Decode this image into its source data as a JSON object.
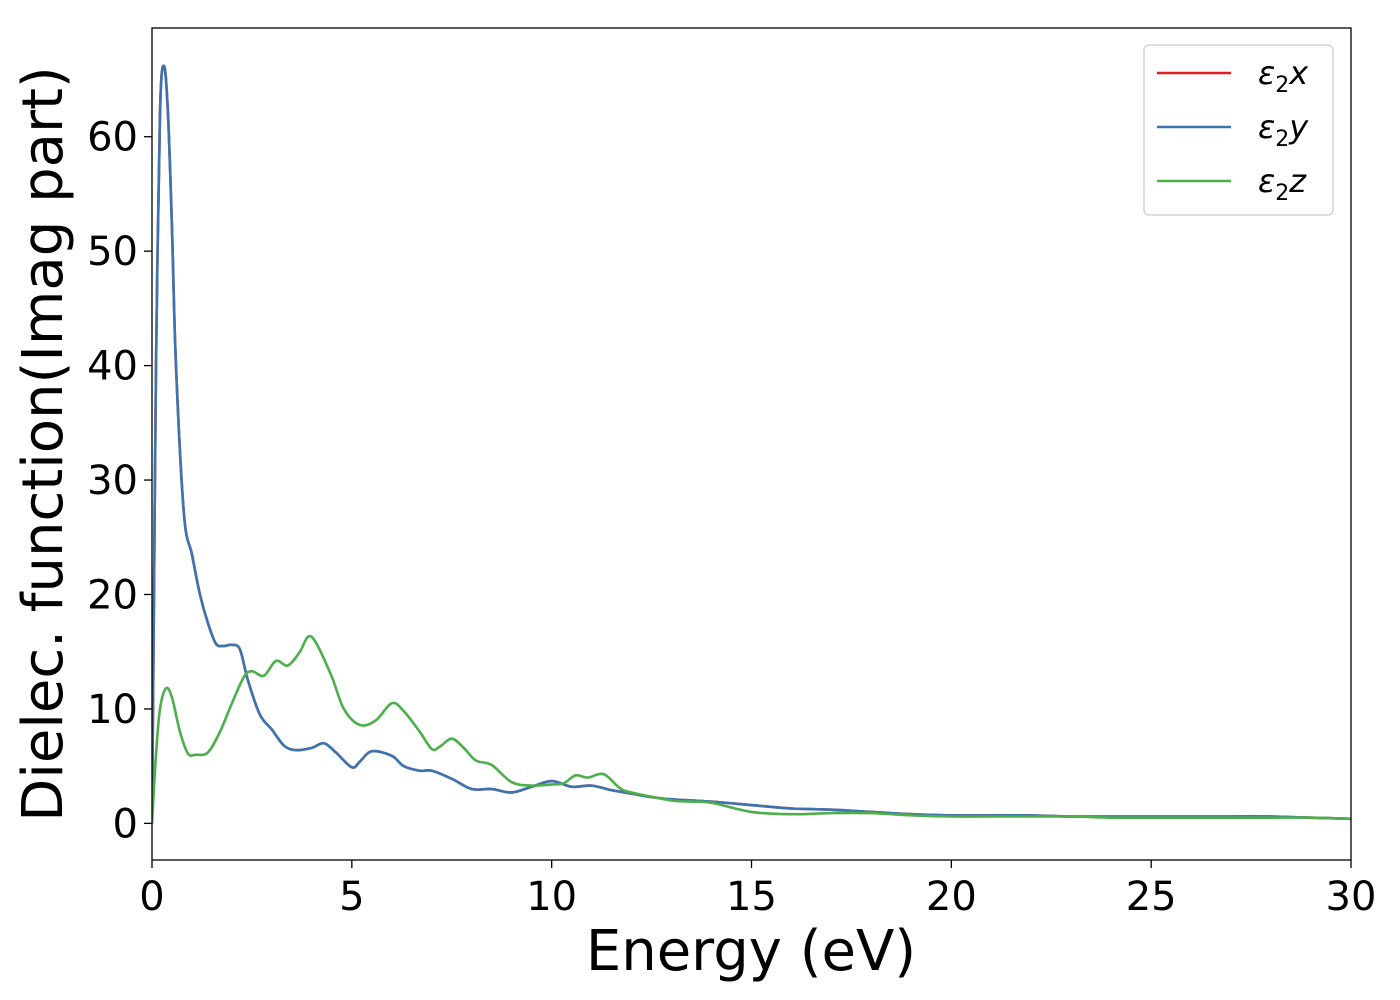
{
  "chart_data": {
    "type": "line",
    "title": "",
    "xlabel": "Energy (eV)",
    "ylabel": "Dielec. function(Imag part)",
    "xlim": [
      0,
      30
    ],
    "ylim": [
      -3.2,
      69.5
    ],
    "xticks": [
      0,
      5,
      10,
      15,
      20,
      25,
      30
    ],
    "yticks": [
      0,
      10,
      20,
      30,
      40,
      50,
      60
    ],
    "grid": false,
    "legend_position": "top-right",
    "series": [
      {
        "name": "ε2x",
        "legend_base": "ε",
        "legend_sub": "2",
        "legend_var": "x",
        "color": "#e41a1c",
        "x": [
          0,
          0.05,
          0.1,
          0.2,
          0.3,
          0.4,
          0.5,
          0.6,
          0.8,
          1.0,
          1.2,
          1.4,
          1.6,
          1.8,
          2.0,
          2.2,
          2.4,
          2.7,
          3.0,
          3.3,
          3.6,
          4.0,
          4.3,
          4.6,
          5.0,
          5.2,
          5.5,
          6.0,
          6.3,
          6.7,
          7.0,
          7.5,
          8.0,
          8.5,
          9.0,
          9.5,
          10.0,
          10.5,
          11.0,
          11.5,
          12.0,
          12.5,
          13.0,
          14.0,
          15.0,
          16.0,
          17.0,
          18.0,
          19.0,
          20.0,
          21.0,
          22.0,
          23.0,
          24.0,
          25.0,
          26.0,
          27.0,
          28.0,
          29.0,
          30.0
        ],
        "y": [
          0,
          20,
          40,
          62,
          66.2,
          62,
          52,
          40,
          27,
          23.5,
          20,
          17.5,
          15.7,
          15.5,
          15.6,
          15.2,
          12.5,
          9.5,
          8.2,
          6.8,
          6.4,
          6.6,
          7.0,
          6.2,
          4.9,
          5.4,
          6.3,
          5.9,
          5.0,
          4.6,
          4.6,
          3.9,
          3.0,
          3.0,
          2.7,
          3.2,
          3.7,
          3.2,
          3.3,
          2.9,
          2.6,
          2.3,
          2.1,
          1.9,
          1.6,
          1.3,
          1.2,
          1.0,
          0.8,
          0.7,
          0.7,
          0.7,
          0.6,
          0.6,
          0.6,
          0.6,
          0.6,
          0.6,
          0.5,
          0.4
        ]
      },
      {
        "name": "ε2y",
        "legend_base": "ε",
        "legend_sub": "2",
        "legend_var": "y",
        "color": "#3a75b3",
        "x": [
          0,
          0.05,
          0.1,
          0.2,
          0.3,
          0.4,
          0.5,
          0.6,
          0.8,
          1.0,
          1.2,
          1.4,
          1.6,
          1.8,
          2.0,
          2.2,
          2.4,
          2.7,
          3.0,
          3.3,
          3.6,
          4.0,
          4.3,
          4.6,
          5.0,
          5.2,
          5.5,
          6.0,
          6.3,
          6.7,
          7.0,
          7.5,
          8.0,
          8.5,
          9.0,
          9.5,
          10.0,
          10.5,
          11.0,
          11.5,
          12.0,
          12.5,
          13.0,
          14.0,
          15.0,
          16.0,
          17.0,
          18.0,
          19.0,
          20.0,
          21.0,
          22.0,
          23.0,
          24.0,
          25.0,
          26.0,
          27.0,
          28.0,
          29.0,
          30.0
        ],
        "y": [
          0,
          20,
          40,
          62,
          66.2,
          62,
          52,
          40,
          27,
          23.5,
          20,
          17.5,
          15.7,
          15.5,
          15.6,
          15.2,
          12.5,
          9.5,
          8.2,
          6.8,
          6.4,
          6.6,
          7.0,
          6.2,
          4.9,
          5.4,
          6.3,
          5.9,
          5.0,
          4.6,
          4.6,
          3.9,
          3.0,
          3.0,
          2.7,
          3.2,
          3.7,
          3.2,
          3.3,
          2.9,
          2.6,
          2.3,
          2.1,
          1.9,
          1.6,
          1.3,
          1.2,
          1.0,
          0.8,
          0.7,
          0.7,
          0.7,
          0.6,
          0.6,
          0.6,
          0.6,
          0.6,
          0.6,
          0.5,
          0.4
        ]
      },
      {
        "name": "ε2z",
        "legend_base": "ε",
        "legend_sub": "2",
        "legend_var": "z",
        "color": "#4daf4a",
        "x": [
          0,
          0.1,
          0.2,
          0.35,
          0.5,
          0.7,
          0.9,
          1.1,
          1.4,
          1.7,
          2.0,
          2.3,
          2.5,
          2.8,
          3.1,
          3.4,
          3.7,
          3.9,
          4.1,
          4.5,
          4.8,
          5.2,
          5.6,
          6.0,
          6.3,
          6.7,
          7.0,
          7.2,
          7.5,
          7.8,
          8.1,
          8.5,
          9.0,
          9.5,
          10.0,
          10.3,
          10.6,
          10.9,
          11.3,
          11.7,
          12.0,
          13.0,
          13.5,
          14.0,
          15.0,
          16.0,
          17.0,
          18.0,
          19.0,
          20.0,
          21.0,
          22.0,
          23.0,
          24.0,
          25.0,
          26.0,
          27.0,
          28.0,
          29.0,
          30.0
        ],
        "y": [
          0,
          6,
          10,
          11.8,
          11,
          8,
          6.1,
          6.0,
          6.2,
          8,
          10.5,
          12.8,
          13.3,
          12.9,
          14.2,
          13.8,
          15.0,
          16.3,
          15.8,
          12.8,
          10.0,
          8.6,
          9.0,
          10.5,
          9.8,
          8.0,
          6.5,
          6.7,
          7.4,
          6.6,
          5.5,
          5.1,
          3.6,
          3.3,
          3.4,
          3.5,
          4.2,
          4.0,
          4.3,
          3.1,
          2.7,
          2.0,
          1.9,
          1.8,
          1.0,
          0.8,
          0.9,
          0.9,
          0.7,
          0.6,
          0.6,
          0.6,
          0.6,
          0.5,
          0.5,
          0.5,
          0.5,
          0.5,
          0.5,
          0.4
        ]
      }
    ]
  }
}
